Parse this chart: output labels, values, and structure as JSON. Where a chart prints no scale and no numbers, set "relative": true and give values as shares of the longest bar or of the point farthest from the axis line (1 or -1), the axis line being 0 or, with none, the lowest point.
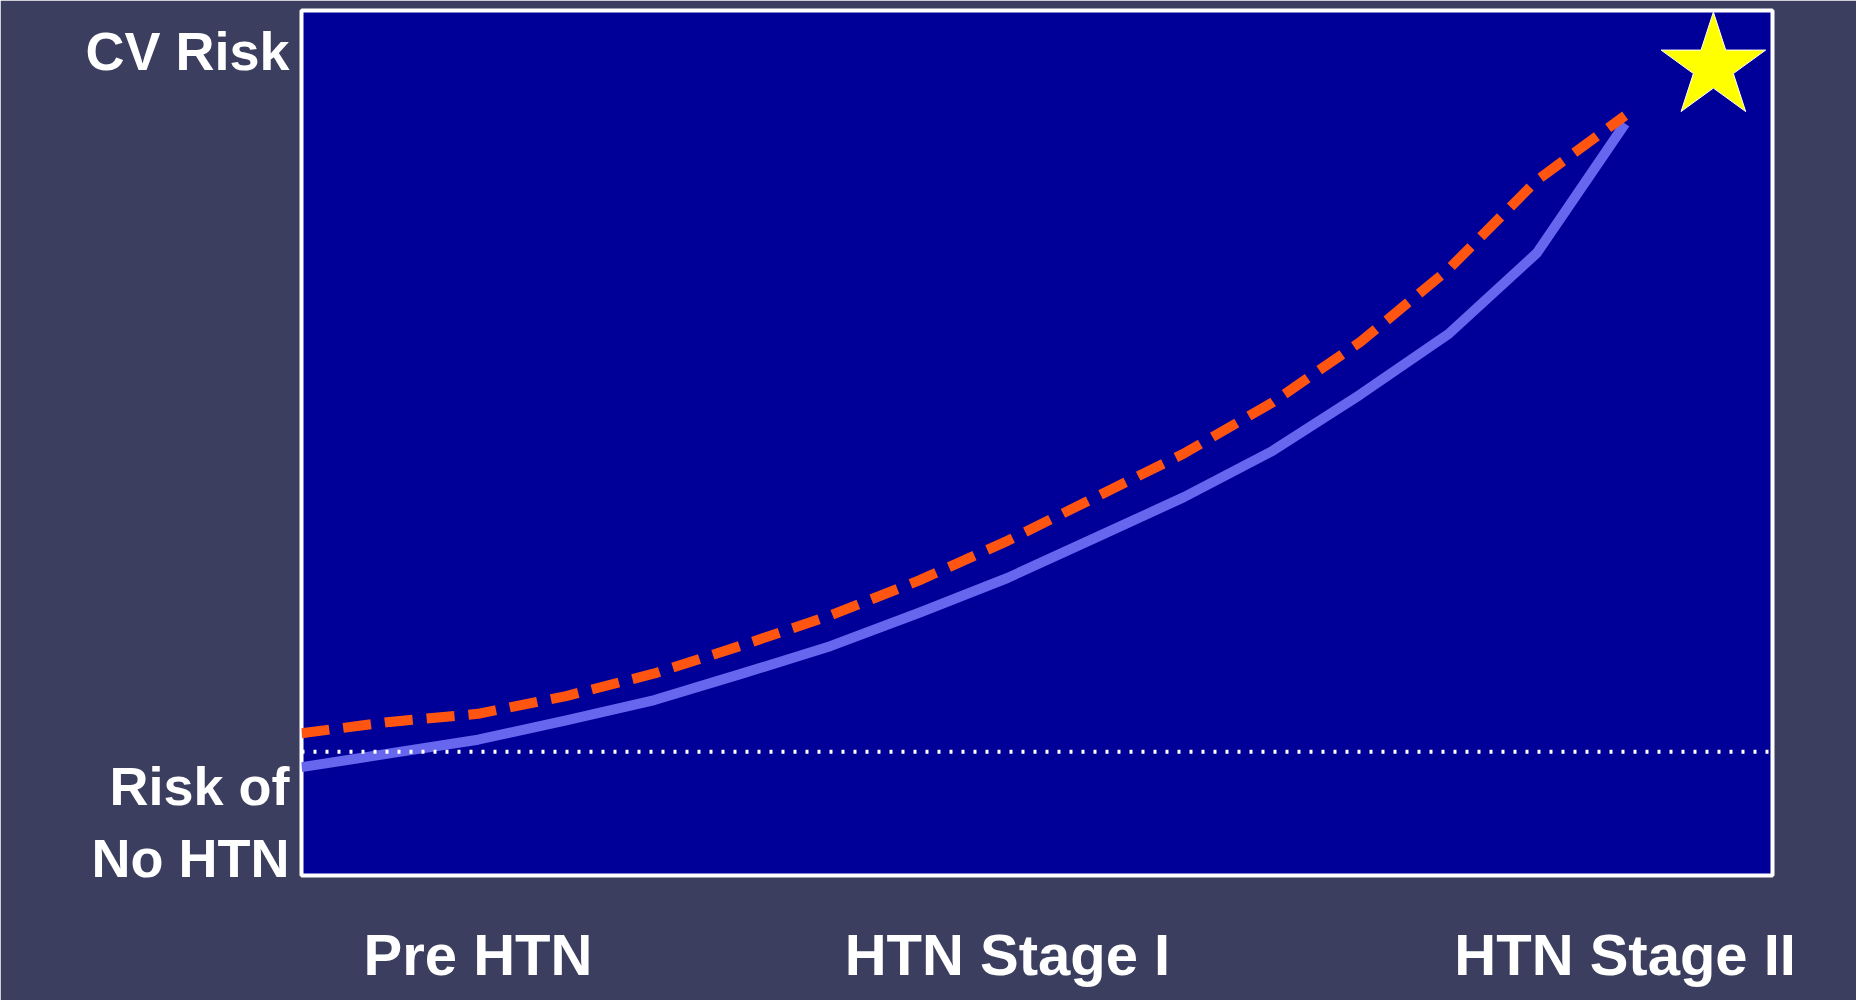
{
  "chart_data": {
    "type": "line",
    "relative": true,
    "ylabel": "CV Risk",
    "categories": [
      null,
      null,
      "Pre HTN",
      null,
      null,
      null,
      null,
      null,
      "HTN Stage I",
      null,
      null,
      null,
      null,
      null,
      null,
      "HTN Stage II",
      null
    ],
    "series": [
      {
        "color": "#6666ee",
        "line_style": "solid",
        "values": [
          0.134,
          0.151,
          0.168,
          0.192,
          0.217,
          0.25,
          0.284,
          0.325,
          0.368,
          0.418,
          0.468,
          0.525,
          0.595,
          0.67,
          0.77,
          0.93,
          null
        ]
      },
      {
        "color": "#ff5511",
        "line_style": "dashed",
        "values": [
          0.176,
          0.19,
          0.2,
          0.222,
          0.25,
          0.285,
          0.322,
          0.365,
          0.414,
          0.468,
          0.522,
          0.585,
          0.66,
          0.75,
          0.86,
          0.94,
          null
        ]
      },
      {
        "type": "scatter",
        "marker": "star",
        "color": "#ffff00",
        "values": [
          null,
          null,
          null,
          null,
          null,
          null,
          null,
          null,
          null,
          null,
          null,
          null,
          null,
          null,
          null,
          null,
          1.0
        ]
      }
    ],
    "ref_lines": [
      {
        "axis": "y",
        "value": 0.153,
        "label": "Risk of No HTN",
        "color": "#ffffff",
        "line_style": "dotted"
      }
    ],
    "grid": false
  }
}
